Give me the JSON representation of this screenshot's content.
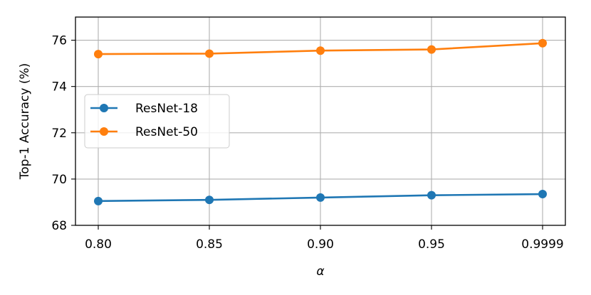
{
  "chart_data": {
    "type": "line",
    "categories": [
      "0.80",
      "0.85",
      "0.90",
      "0.95",
      "0.9999"
    ],
    "series": [
      {
        "name": "ResNet-18",
        "color": "#1f77b4",
        "values": [
          69.05,
          69.1,
          69.2,
          69.3,
          69.35
        ]
      },
      {
        "name": "ResNet-50",
        "color": "#ff7f0e",
        "values": [
          75.4,
          75.42,
          75.55,
          75.6,
          75.87
        ]
      }
    ],
    "xlabel": "α",
    "ylabel": "Top-1 Accuracy (%)",
    "ylim": [
      68,
      77
    ],
    "yticks": [
      "68",
      "70",
      "72",
      "74",
      "76"
    ],
    "grid": true,
    "legend": "center-left",
    "marker": "circle"
  }
}
